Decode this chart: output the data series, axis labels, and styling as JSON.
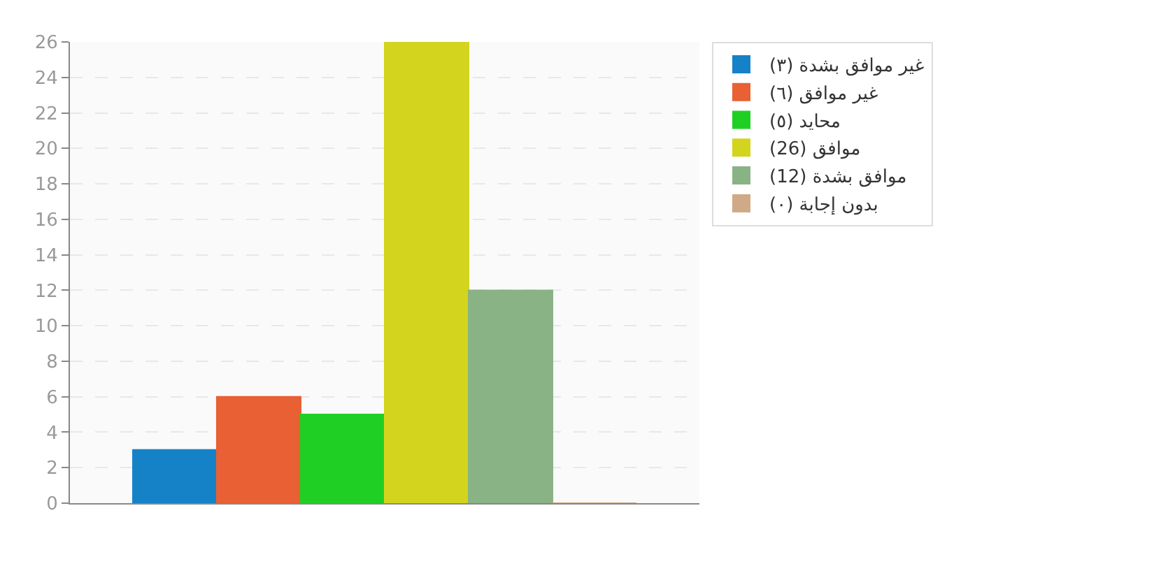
{
  "chart_data": {
    "type": "bar",
    "categories": [
      null
    ],
    "series": [
      {
        "name": "غير موافق بشدة (٣)",
        "color": "#1582c8",
        "values": [
          3
        ]
      },
      {
        "name": "غير موافق (٦)",
        "color": "#e86033",
        "values": [
          6
        ]
      },
      {
        "name": "محايد (٥)",
        "color": "#20cf24",
        "values": [
          5
        ]
      },
      {
        "name": "موافق (26)",
        "color": "#d3d41e",
        "values": [
          26
        ]
      },
      {
        "name": "موافق بشدة (12)",
        "color": "#89b384",
        "values": [
          12
        ]
      },
      {
        "name": "بدون إجابة (٠)",
        "color": "#d0aa86",
        "values": [
          0
        ]
      }
    ],
    "ylim": [
      0,
      26
    ],
    "yticks": [
      0,
      2,
      4,
      6,
      8,
      10,
      12,
      14,
      16,
      18,
      20,
      22,
      24,
      26
    ],
    "grid": "y",
    "legend": "top right"
  }
}
